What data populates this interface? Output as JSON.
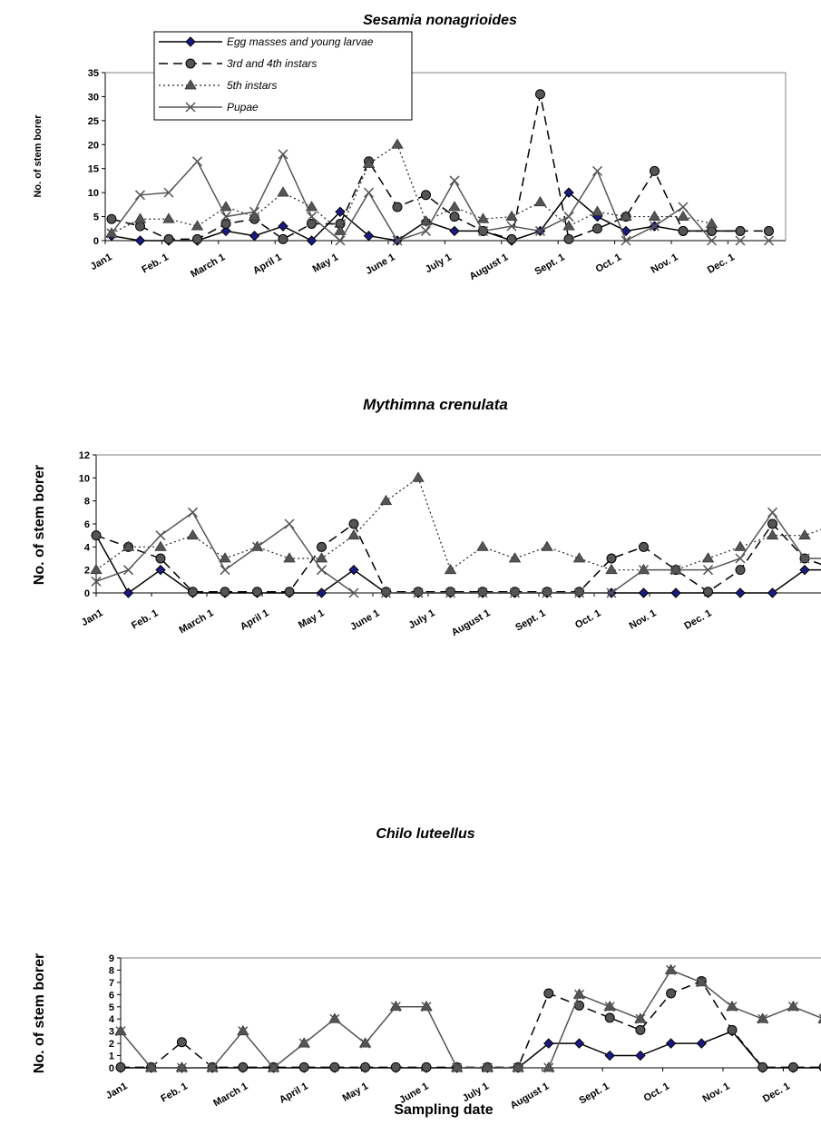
{
  "chart_data": [
    {
      "type": "line",
      "title": "Sesamia nonagrioides",
      "ylabel": "No. of stem borer",
      "xlabel": "",
      "ylim": [
        0,
        35
      ],
      "yticks": [
        0,
        5,
        10,
        15,
        20,
        25,
        30,
        35
      ],
      "grid": false,
      "legend": "top-left",
      "x_tick_labels": [
        "Jan1",
        "Feb. 1",
        "March 1",
        "April 1",
        "May 1",
        "June 1",
        "July 1",
        "August 1",
        "Sept. 1",
        "Oct. 1",
        "Nov. 1",
        "Dec. 1"
      ],
      "series": [
        {
          "name": "Egg masses and young larvae",
          "values": [
            1,
            0,
            0,
            0,
            2,
            1,
            3,
            0,
            6,
            1,
            0,
            4,
            2,
            2,
            0,
            2,
            10,
            5,
            2,
            3,
            2,
            2,
            2
          ]
        },
        {
          "name": "3rd and 4th instars",
          "values": [
            4.5,
            3,
            0.3,
            0.3,
            3.5,
            4.5,
            0.3,
            3.5,
            3.5,
            16.5,
            7,
            9.5,
            5,
            2,
            0.3,
            30.5,
            0.3,
            2.5,
            5,
            14.5,
            2,
            2,
            2,
            2
          ]
        },
        {
          "name": "5th instars",
          "values": [
            1.5,
            4.5,
            4.5,
            3,
            7,
            5,
            10,
            7,
            2,
            16,
            20,
            4,
            7,
            4.5,
            5,
            8,
            3,
            6,
            5,
            5,
            5,
            3.5
          ]
        },
        {
          "name": "Pupae",
          "values": [
            1.5,
            9.5,
            10,
            16.5,
            5,
            6,
            18,
            5,
            0,
            10,
            0,
            2,
            12.5,
            2,
            3,
            2,
            5,
            14.5,
            0,
            3,
            7,
            0,
            0,
            0
          ]
        }
      ]
    },
    {
      "type": "line",
      "title": "Mythimna crenulata",
      "ylabel": "No. of stem borer",
      "xlabel": "",
      "ylim": [
        0,
        12
      ],
      "yticks": [
        0,
        2,
        4,
        6,
        8,
        10,
        12
      ],
      "grid": false,
      "x_tick_labels": [
        "Jan1",
        "Feb. 1",
        "March 1",
        "April 1",
        "May 1",
        "June 1",
        "July 1",
        "August 1",
        "Sept. 1",
        "Oct. 1",
        "Nov. 1",
        "Dec. 1"
      ],
      "series": [
        {
          "name": "Egg masses and young larvae",
          "values": [
            5,
            0,
            2,
            0,
            0,
            0,
            0,
            0,
            2,
            0,
            0,
            0,
            0,
            0,
            0,
            0,
            0,
            0,
            0,
            0,
            0,
            0,
            2,
            2
          ]
        },
        {
          "name": "3rd and 4th instars",
          "values": [
            5,
            4,
            3,
            0.1,
            0.1,
            0.1,
            0.1,
            4,
            6,
            0.1,
            0.1,
            0.1,
            0.1,
            0.1,
            0.1,
            0.1,
            3,
            4,
            2,
            0.1,
            2,
            6,
            3,
            2
          ]
        },
        {
          "name": "5th instars",
          "values": [
            2,
            4,
            4,
            5,
            3,
            4,
            3,
            3,
            5,
            8,
            10,
            2,
            4,
            3,
            4,
            3,
            2,
            2,
            2,
            3,
            4,
            5,
            5,
            6
          ]
        },
        {
          "name": "Pupae",
          "values": [
            1,
            2,
            5,
            7,
            2,
            4,
            6,
            2,
            0,
            0,
            0,
            0,
            0,
            0,
            0,
            0,
            0,
            2,
            2,
            2,
            3,
            7,
            3,
            3
          ]
        }
      ]
    },
    {
      "type": "line",
      "title": "Chilo luteellus",
      "ylabel": "No. of stem borer",
      "xlabel": "Sampling date",
      "ylim": [
        0,
        9
      ],
      "yticks": [
        0,
        1,
        2,
        3,
        4,
        5,
        6,
        7,
        8,
        9
      ],
      "grid": false,
      "x_tick_labels": [
        "Jan1",
        "Feb. 1",
        "March 1",
        "April 1",
        "May 1",
        "June 1",
        "July 1",
        "August 1",
        "Sept. 1",
        "Oct. 1",
        "Nov. 1",
        "Dec. 1"
      ],
      "series": [
        {
          "name": "Egg masses and young larvae",
          "values": [
            0,
            0,
            0,
            0,
            0,
            0,
            0,
            0,
            0,
            0,
            0,
            0,
            0,
            0,
            2,
            2,
            1,
            1,
            2,
            2,
            3,
            0,
            0,
            0
          ]
        },
        {
          "name": "3rd and 4th instars",
          "values": [
            0.05,
            0.05,
            2.1,
            0.05,
            0.05,
            0.05,
            0.05,
            0.05,
            0.05,
            0.05,
            0.05,
            0.05,
            0.05,
            0.05,
            6.1,
            5.1,
            4.1,
            3.1,
            6.1,
            7.1,
            3.1,
            0.05,
            0.05,
            0.05
          ]
        },
        {
          "name": "5th instars",
          "values": [
            3,
            0,
            0,
            0,
            3,
            0,
            2,
            4,
            2,
            5,
            5,
            0,
            0,
            0,
            0,
            6,
            5,
            4,
            8,
            7,
            5,
            4,
            5,
            4
          ]
        },
        {
          "name": "Pupae",
          "values": [
            3,
            0,
            0,
            0,
            3,
            0,
            2,
            4,
            2,
            5,
            5,
            0,
            0,
            0,
            0,
            6,
            5,
            4,
            8,
            7,
            5,
            4,
            5,
            4
          ]
        }
      ]
    }
  ]
}
